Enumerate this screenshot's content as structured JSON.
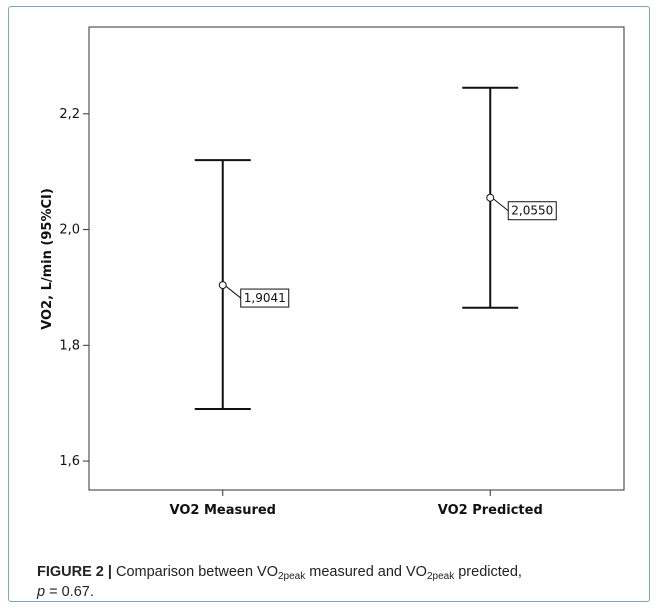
{
  "chart_data": {
    "type": "errorbar",
    "title": "",
    "xlabel": "",
    "ylabel": "VO2, L/min (95%CI)",
    "ylim": [
      1.55,
      2.35
    ],
    "yticks": [
      1.6,
      1.8,
      2.0,
      2.2
    ],
    "ytick_labels": [
      "1,6",
      "1,8",
      "2,0",
      "2,2"
    ],
    "categories": [
      "VO2 Measured",
      "VO2 Predicted"
    ],
    "means": [
      1.9041,
      2.055
    ],
    "mean_labels": [
      "1,9041",
      "2,0550"
    ],
    "ci_lower": [
      1.69,
      1.865
    ],
    "ci_upper": [
      2.12,
      2.245
    ],
    "grid": false,
    "legend": false
  },
  "caption": {
    "figure_number": "FIGURE 2 |",
    "text_part1": " Comparison between VO",
    "sub1": "2peak",
    "text_part2": " measured and VO",
    "sub2": "2peak",
    "text_part3": " predicted,",
    "p_symbol": "p",
    "p_value": " = 0.67."
  }
}
